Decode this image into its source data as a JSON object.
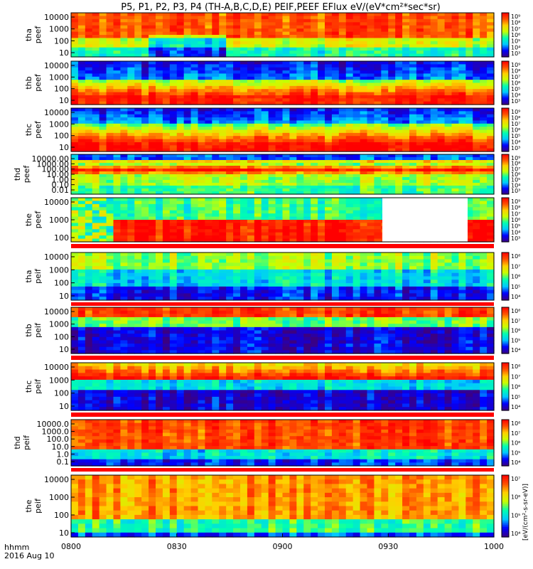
{
  "title": "P5, P1, P2, P3, P4 (TH-A,B,C,D,E) PEIF,PEEF EFlux eV/(eV*cm²*sec*sr)",
  "footer": {
    "label_line1": "hhmm",
    "label_line2": "2016 Aug 10"
  },
  "colorbar_unit_label": "[eV/(cm²-s-sr-eV)]",
  "chart_data": {
    "type": "heatmap",
    "x_axis": {
      "label": "hhmm",
      "date": "2016 Aug 10",
      "range": [
        "0800",
        "1000"
      ],
      "tick_labels": [
        "0800",
        "0830",
        "0900",
        "0930",
        "1000"
      ]
    },
    "panels": [
      {
        "probe": "tha",
        "species": "peef",
        "ylabel": [
          "tha",
          "peef"
        ],
        "yticks": [
          "10000",
          "1000",
          "100",
          "10"
        ],
        "ylog": true,
        "colorbar_ticks": [
          "10⁹",
          "10⁸",
          "10⁷",
          "10⁶",
          "10⁵",
          "10⁴",
          "10³"
        ]
      },
      {
        "probe": "thb",
        "species": "peef",
        "ylabel": [
          "thb",
          "peef"
        ],
        "yticks": [
          "10000",
          "1000",
          "100",
          "10"
        ],
        "ylog": true,
        "colorbar_ticks": [
          "10⁹",
          "10⁸",
          "10⁷",
          "10⁶",
          "10⁵",
          "10⁴",
          "10³"
        ]
      },
      {
        "probe": "thc",
        "species": "peef",
        "ylabel": [
          "thc",
          "peef"
        ],
        "yticks": [
          "10000",
          "1000",
          "100",
          "10"
        ],
        "ylog": true,
        "colorbar_ticks": [
          "10⁹",
          "10⁸",
          "10⁷",
          "10⁶",
          "10⁵",
          "10⁴",
          "10³"
        ]
      },
      {
        "probe": "thd",
        "species": "peef",
        "ylabel": [
          "thd",
          "peef"
        ],
        "yticks": [
          "10000.00",
          "1000.00",
          "100.00",
          "10.00",
          "1.00",
          "0.10",
          "0.01"
        ],
        "ylog": true,
        "colorbar_ticks": [
          "10⁹",
          "10⁸",
          "10⁷",
          "10⁶",
          "10⁵",
          "10⁴",
          "10³"
        ]
      },
      {
        "probe": "the",
        "species": "peef",
        "ylabel": [
          "the",
          "peef"
        ],
        "yticks": [
          "10000",
          "1000",
          "100"
        ],
        "ylog": true,
        "colorbar_ticks": [
          "10⁹",
          "10⁸",
          "10⁷",
          "10⁶",
          "10⁵",
          "10⁴",
          "10³"
        ]
      },
      {
        "probe": "tha",
        "species": "peif",
        "ylabel": [
          "tha",
          "peif"
        ],
        "yticks": [
          "10000",
          "1000",
          "100",
          "10"
        ],
        "ylog": true,
        "colorbar_ticks": [
          "10⁸",
          "10⁷",
          "10⁶",
          "10⁵",
          "10⁴"
        ]
      },
      {
        "probe": "thb",
        "species": "peif",
        "ylabel": [
          "thb",
          "peif"
        ],
        "yticks": [
          "10000",
          "1000",
          "100",
          "10"
        ],
        "ylog": true,
        "colorbar_ticks": [
          "10⁸",
          "10⁷",
          "10⁶",
          "10⁵",
          "10⁴"
        ]
      },
      {
        "probe": "thc",
        "species": "peif",
        "ylabel": [
          "thc",
          "peif"
        ],
        "yticks": [
          "10000",
          "1000",
          "100",
          "10"
        ],
        "ylog": true,
        "colorbar_ticks": [
          "10⁸",
          "10⁷",
          "10⁶",
          "10⁵",
          "10⁴"
        ]
      },
      {
        "probe": "thd",
        "species": "peif",
        "ylabel": [
          "thd",
          "peif"
        ],
        "yticks": [
          "10000.0",
          "1000.0",
          "100.0",
          "10.0",
          "1.0",
          "0.1"
        ],
        "ylog": true,
        "colorbar_ticks": [
          "10⁸",
          "10⁷",
          "10⁶",
          "10⁵",
          "10⁴"
        ]
      },
      {
        "probe": "the",
        "species": "peif",
        "ylabel": [
          "the",
          "peif"
        ],
        "yticks": [
          "10000",
          "1000",
          "100",
          "10"
        ],
        "ylog": true,
        "colorbar_ticks": [
          "10⁷",
          "10⁶",
          "10⁵",
          "10⁴"
        ]
      }
    ],
    "colorscale": [
      "#3b0082",
      "#0000ff",
      "#00c8ff",
      "#00ffb0",
      "#c8ff00",
      "#ffd000",
      "#ff5000",
      "#ff0000"
    ]
  }
}
